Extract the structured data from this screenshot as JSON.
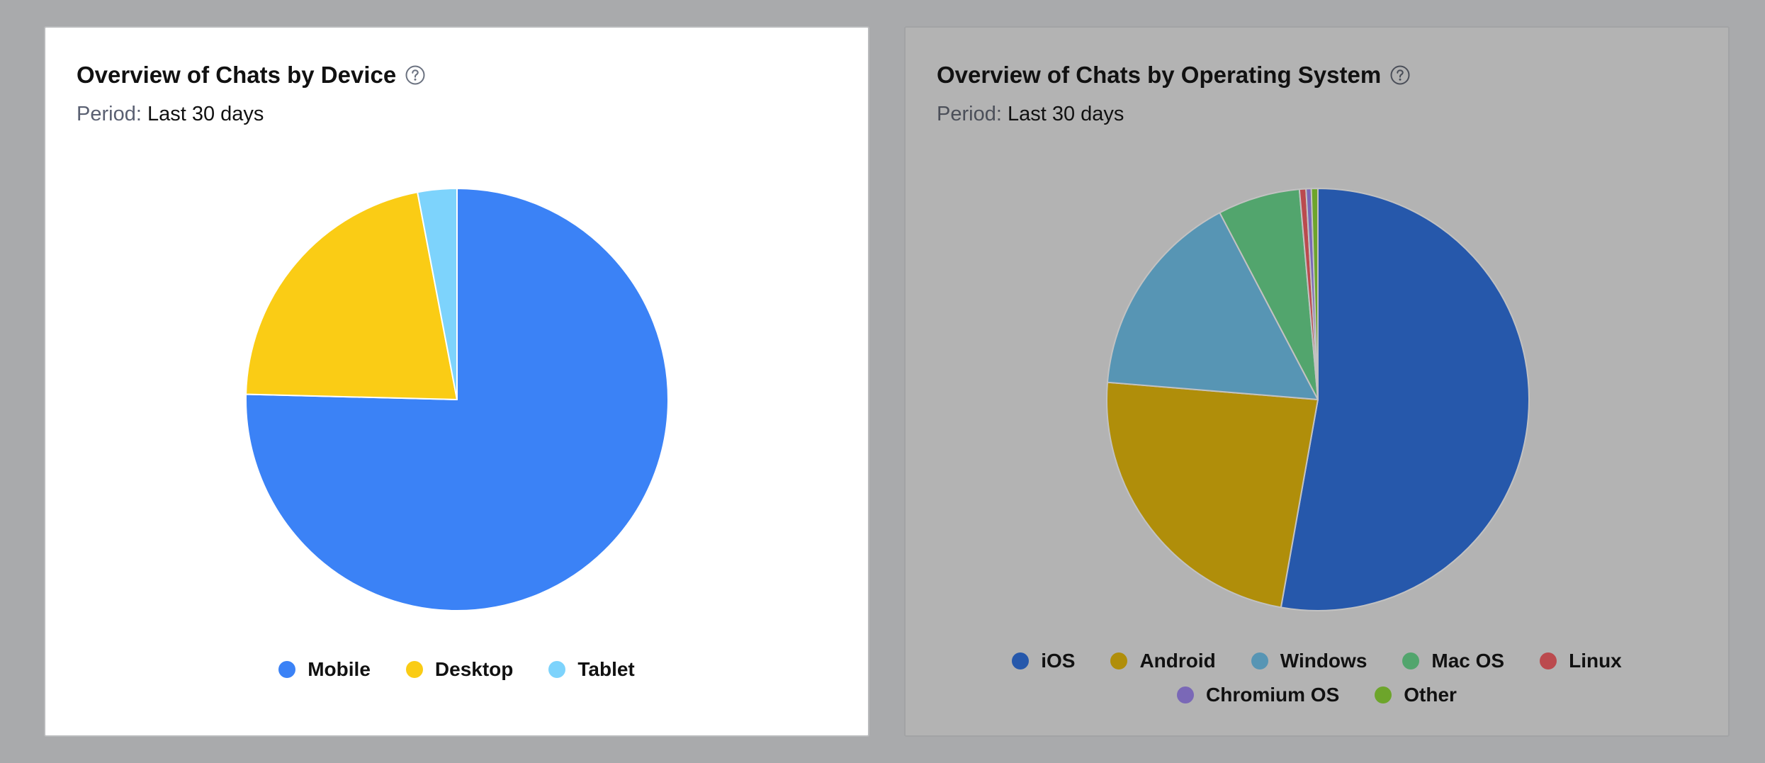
{
  "charts": [
    {
      "title": "Overview of Chats by Device",
      "period_label": "Period:",
      "period_value": "Last 30 days",
      "help_icon": "question-circle-icon"
    },
    {
      "title": "Overview of Chats by Operating System",
      "period_label": "Period:",
      "period_value": "Last 30 days",
      "help_icon": "question-circle-icon"
    }
  ],
  "chart_data": [
    {
      "type": "pie",
      "title": "Overview of Chats by Device",
      "start_angle": "top, clockwise",
      "legend_position": "bottom",
      "slices": [
        {
          "name": "Mobile",
          "value": 75.4,
          "color": "#3b82f6"
        },
        {
          "name": "Desktop",
          "value": 21.6,
          "color": "#facc15"
        },
        {
          "name": "Tablet",
          "value": 3.0,
          "color": "#7dd3fc"
        }
      ]
    },
    {
      "type": "pie",
      "title": "Overview of Chats by Operating System",
      "start_angle": "top, clockwise",
      "legend_position": "bottom",
      "slices": [
        {
          "name": "iOS",
          "value": 52.8,
          "color": "#2658ab"
        },
        {
          "name": "Android",
          "value": 23.5,
          "color": "#b08e0a"
        },
        {
          "name": "Windows",
          "value": 16.0,
          "color": "#5795b4"
        },
        {
          "name": "Mac OS",
          "value": 6.3,
          "color": "#52a56d"
        },
        {
          "name": "Linux",
          "value": 0.5,
          "color": "#bb4a4e"
        },
        {
          "name": "Chromium OS",
          "value": 0.4,
          "color": "#7a68b7"
        },
        {
          "name": "Other",
          "value": 0.5,
          "color": "#6da52b"
        }
      ]
    }
  ]
}
